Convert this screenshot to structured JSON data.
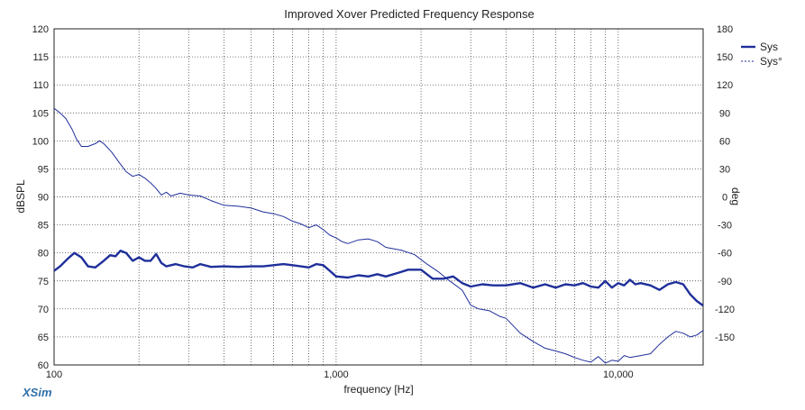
{
  "watermark": "XSim",
  "chart_data": {
    "type": "line",
    "title": "Improved Xover Predicted Frequency Response",
    "xlabel": "frequency [Hz]",
    "ylabel": "dBSPL",
    "y2label": "deg",
    "xscale": "log",
    "xlim": [
      100,
      20000
    ],
    "ylim": [
      60,
      120
    ],
    "y2lim": [
      -180,
      180
    ],
    "x_tick_labels": [
      {
        "value": 100,
        "label": "100"
      },
      {
        "value": 1000,
        "label": "1,000"
      },
      {
        "value": 10000,
        "label": "10,000"
      }
    ],
    "y_ticks": [
      60,
      65,
      70,
      75,
      80,
      85,
      90,
      95,
      100,
      105,
      110,
      115,
      120
    ],
    "y2_ticks": [
      -150,
      -120,
      -90,
      -60,
      -30,
      0,
      30,
      60,
      90,
      120,
      150,
      180
    ],
    "grid": true,
    "legend_position": "top-right",
    "series": [
      {
        "name": "Sys",
        "axis": "left",
        "color": "#1f2f9a",
        "style": "solid",
        "points": [
          [
            100,
            76.8
          ],
          [
            105,
            77.6
          ],
          [
            112,
            79.0
          ],
          [
            118,
            80.0
          ],
          [
            125,
            79.2
          ],
          [
            132,
            77.6
          ],
          [
            140,
            77.4
          ],
          [
            150,
            78.6
          ],
          [
            158,
            79.6
          ],
          [
            165,
            79.4
          ],
          [
            172,
            80.4
          ],
          [
            180,
            80.0
          ],
          [
            190,
            78.6
          ],
          [
            200,
            79.2
          ],
          [
            210,
            78.6
          ],
          [
            220,
            78.6
          ],
          [
            230,
            79.8
          ],
          [
            240,
            78.2
          ],
          [
            250,
            77.6
          ],
          [
            270,
            78.0
          ],
          [
            290,
            77.6
          ],
          [
            310,
            77.4
          ],
          [
            330,
            78.0
          ],
          [
            360,
            77.5
          ],
          [
            400,
            77.6
          ],
          [
            450,
            77.5
          ],
          [
            500,
            77.6
          ],
          [
            550,
            77.6
          ],
          [
            600,
            77.8
          ],
          [
            650,
            78.0
          ],
          [
            700,
            77.8
          ],
          [
            750,
            77.6
          ],
          [
            800,
            77.4
          ],
          [
            850,
            78.0
          ],
          [
            900,
            77.8
          ],
          [
            950,
            76.8
          ],
          [
            1000,
            75.8
          ],
          [
            1100,
            75.6
          ],
          [
            1200,
            76.0
          ],
          [
            1300,
            75.8
          ],
          [
            1400,
            76.2
          ],
          [
            1500,
            75.8
          ],
          [
            1650,
            76.4
          ],
          [
            1800,
            77.0
          ],
          [
            2000,
            77.0
          ],
          [
            2200,
            75.4
          ],
          [
            2400,
            75.4
          ],
          [
            2600,
            75.8
          ],
          [
            2800,
            74.6
          ],
          [
            3000,
            74.0
          ],
          [
            3300,
            74.4
          ],
          [
            3600,
            74.2
          ],
          [
            4000,
            74.2
          ],
          [
            4500,
            74.6
          ],
          [
            5000,
            73.8
          ],
          [
            5500,
            74.4
          ],
          [
            6000,
            73.8
          ],
          [
            6500,
            74.4
          ],
          [
            7000,
            74.2
          ],
          [
            7500,
            74.6
          ],
          [
            8000,
            74.0
          ],
          [
            8500,
            73.8
          ],
          [
            9000,
            75.0
          ],
          [
            9500,
            73.8
          ],
          [
            10000,
            74.6
          ],
          [
            10500,
            74.2
          ],
          [
            11000,
            75.2
          ],
          [
            11500,
            74.4
          ],
          [
            12000,
            74.6
          ],
          [
            13000,
            74.2
          ],
          [
            14000,
            73.4
          ],
          [
            15000,
            74.4
          ],
          [
            16000,
            74.8
          ],
          [
            17000,
            74.4
          ],
          [
            18000,
            72.6
          ],
          [
            19000,
            71.4
          ],
          [
            20000,
            70.6
          ]
        ]
      },
      {
        "name": "Sys°",
        "axis": "right",
        "color": "#1f2f9a",
        "style": "dashed",
        "points": [
          [
            100,
            95
          ],
          [
            105,
            90
          ],
          [
            110,
            84
          ],
          [
            116,
            72
          ],
          [
            120,
            62
          ],
          [
            125,
            54
          ],
          [
            132,
            54
          ],
          [
            140,
            57
          ],
          [
            145,
            60
          ],
          [
            150,
            57
          ],
          [
            160,
            48
          ],
          [
            170,
            37
          ],
          [
            180,
            27
          ],
          [
            190,
            22
          ],
          [
            200,
            24
          ],
          [
            210,
            20
          ],
          [
            220,
            15
          ],
          [
            230,
            9
          ],
          [
            240,
            2
          ],
          [
            250,
            5
          ],
          [
            260,
            1
          ],
          [
            280,
            4
          ],
          [
            300,
            2
          ],
          [
            330,
            1
          ],
          [
            360,
            -4
          ],
          [
            400,
            -9
          ],
          [
            450,
            -10
          ],
          [
            500,
            -12
          ],
          [
            550,
            -16
          ],
          [
            600,
            -18
          ],
          [
            650,
            -21
          ],
          [
            700,
            -26
          ],
          [
            750,
            -29
          ],
          [
            800,
            -33
          ],
          [
            850,
            -30
          ],
          [
            900,
            -35
          ],
          [
            950,
            -41
          ],
          [
            1000,
            -44
          ],
          [
            1050,
            -48
          ],
          [
            1100,
            -50
          ],
          [
            1200,
            -46
          ],
          [
            1300,
            -45
          ],
          [
            1400,
            -48
          ],
          [
            1500,
            -54
          ],
          [
            1700,
            -57
          ],
          [
            1900,
            -62
          ],
          [
            2100,
            -72
          ],
          [
            2300,
            -80
          ],
          [
            2500,
            -89
          ],
          [
            2800,
            -100
          ],
          [
            3000,
            -116
          ],
          [
            3200,
            -120
          ],
          [
            3500,
            -122
          ],
          [
            3800,
            -128
          ],
          [
            4000,
            -130
          ],
          [
            4500,
            -146
          ],
          [
            5000,
            -155
          ],
          [
            5500,
            -162
          ],
          [
            6000,
            -165
          ],
          [
            6500,
            -168
          ],
          [
            7000,
            -172
          ],
          [
            7500,
            -175
          ],
          [
            8000,
            -177
          ],
          [
            8500,
            -171
          ],
          [
            9000,
            -178
          ],
          [
            9500,
            -175
          ],
          [
            10000,
            -176
          ],
          [
            10500,
            -170
          ],
          [
            11000,
            -172
          ],
          [
            12000,
            -170
          ],
          [
            13000,
            -168
          ],
          [
            14000,
            -158
          ],
          [
            15000,
            -150
          ],
          [
            16000,
            -144
          ],
          [
            17000,
            -146
          ],
          [
            18000,
            -150
          ],
          [
            19000,
            -148
          ],
          [
            20000,
            -143
          ]
        ]
      }
    ]
  }
}
